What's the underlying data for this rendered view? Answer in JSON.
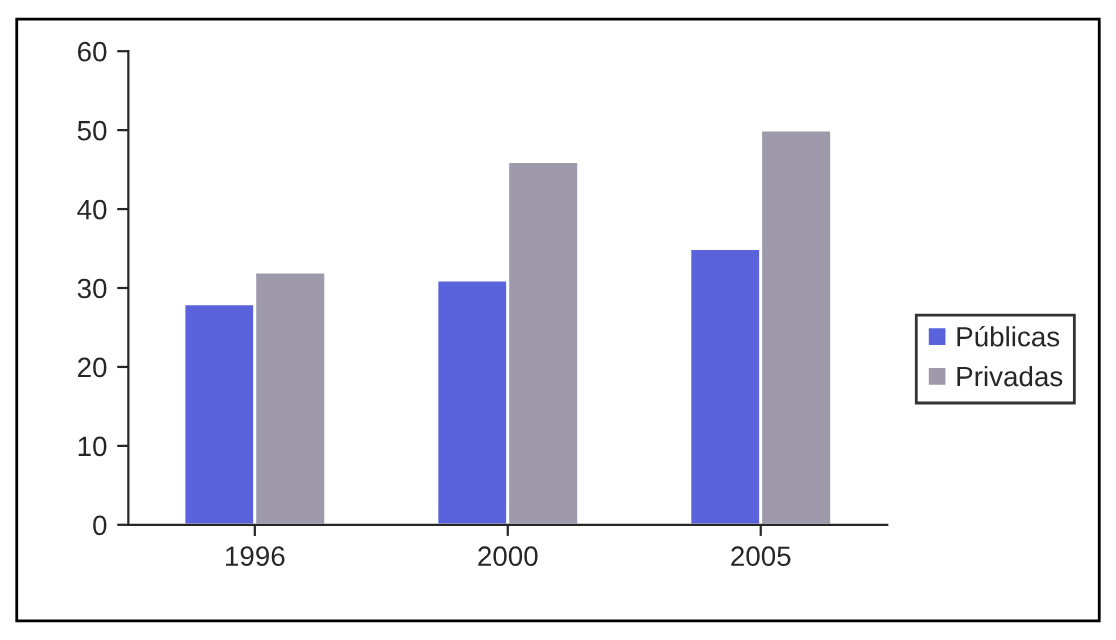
{
  "chart_data": {
    "type": "bar",
    "categories": [
      "1996",
      "2000",
      "2005"
    ],
    "series": [
      {
        "name": "Públicas",
        "color": "#5a62dc",
        "values": [
          28,
          31,
          35
        ]
      },
      {
        "name": "Privadas",
        "color": "#9e9aac",
        "values": [
          32,
          46,
          50
        ]
      }
    ],
    "ylim": [
      0,
      60
    ],
    "yticks": [
      0,
      10,
      20,
      30,
      40,
      50,
      60
    ],
    "grid": false,
    "legend": "right"
  }
}
